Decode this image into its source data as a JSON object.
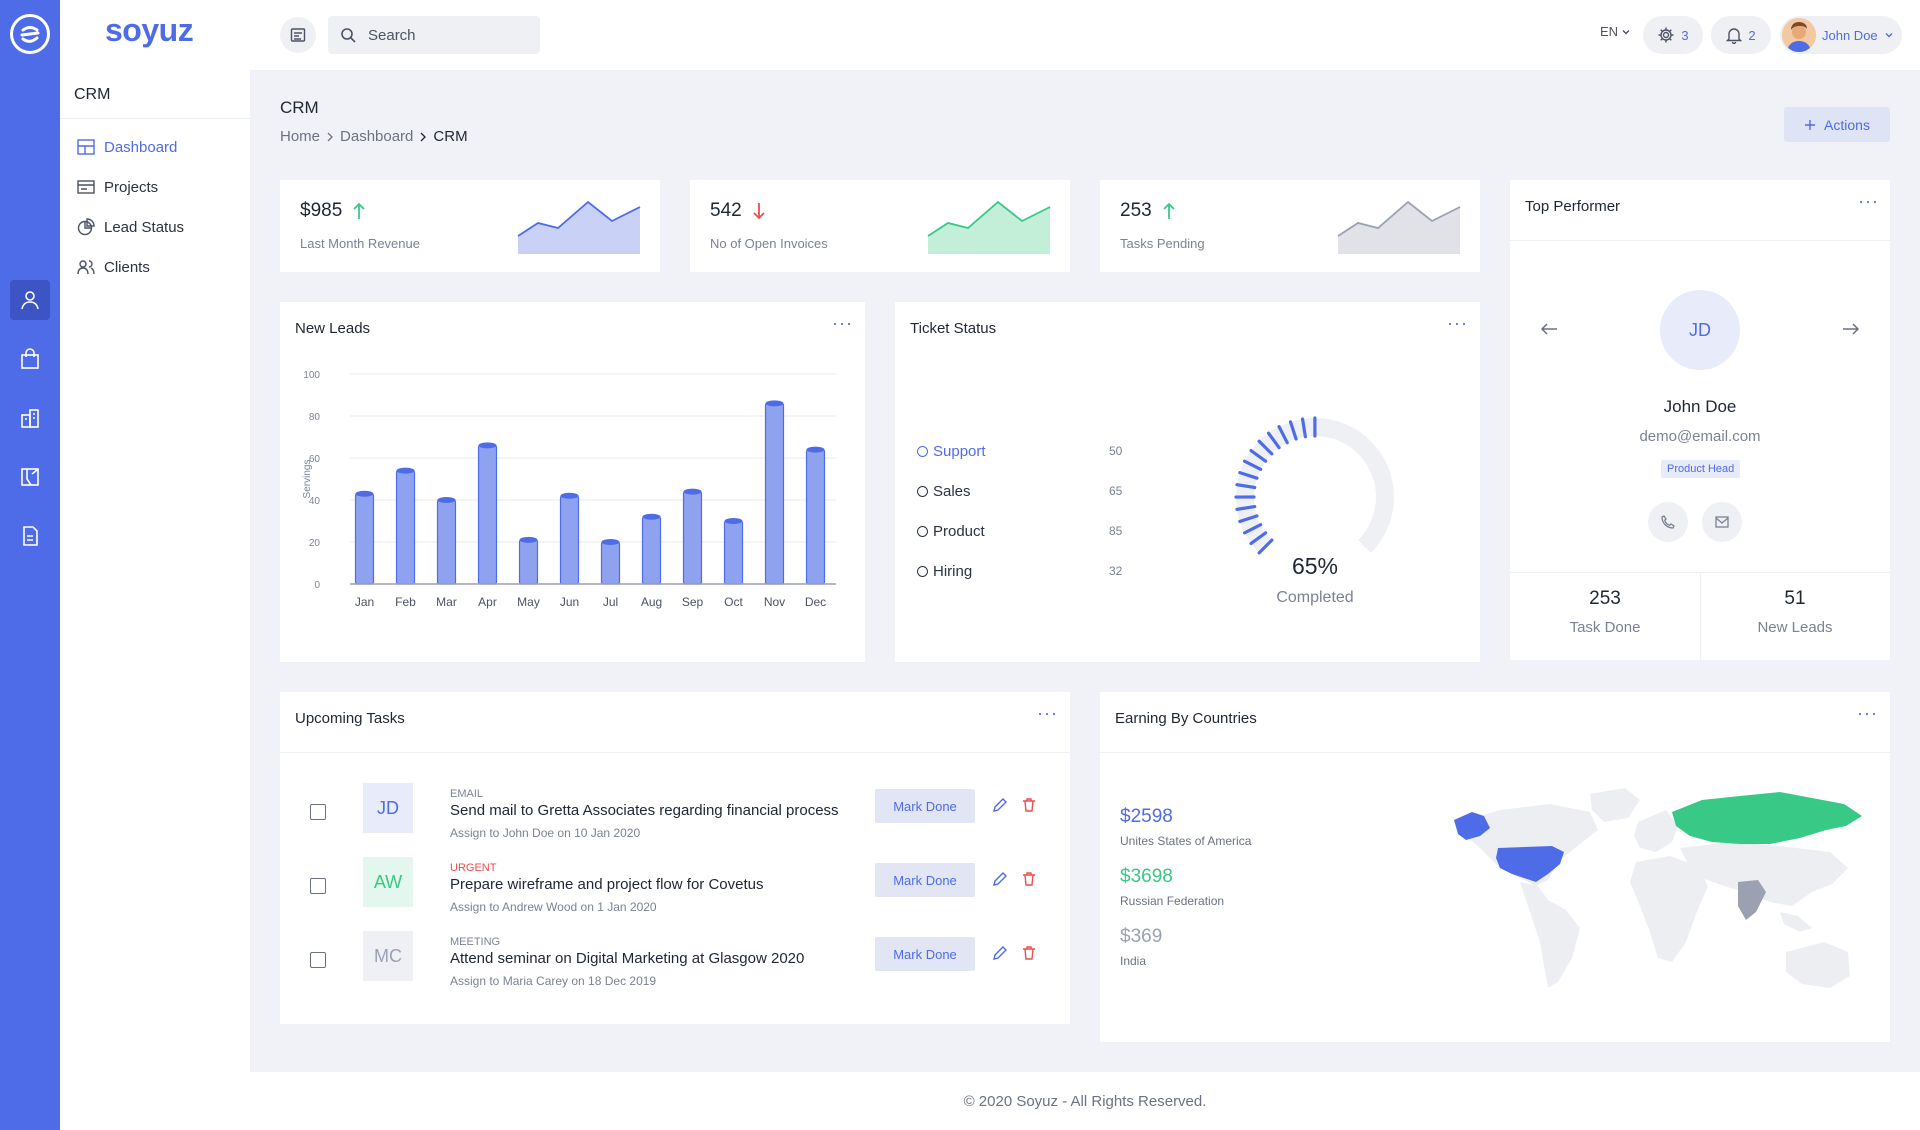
{
  "brand": "soyuz",
  "rail": {
    "icons": [
      "logo-icon",
      "user-icon",
      "bag-icon",
      "building-icon",
      "design-icon",
      "document-icon"
    ]
  },
  "sidebar": {
    "section": "CRM",
    "items": [
      {
        "label": "Dashboard",
        "icon": "dashboard-icon",
        "active": true
      },
      {
        "label": "Projects",
        "icon": "projects-icon"
      },
      {
        "label": "Lead Status",
        "icon": "pie-icon"
      },
      {
        "label": "Clients",
        "icon": "clients-icon"
      }
    ]
  },
  "topbar": {
    "search_placeholder": "Search",
    "language": "EN",
    "settings_count": "3",
    "notifications_count": "2",
    "user_name": "John Doe"
  },
  "page": {
    "title": "CRM",
    "breadcrumb": [
      "Home",
      "Dashboard",
      "CRM"
    ],
    "actions_label": "Actions"
  },
  "stats": [
    {
      "value": "$985",
      "trend": "up",
      "label": "Last Month Revenue",
      "color": "#4f6ce8",
      "fill": "#c9d1f7"
    },
    {
      "value": "542",
      "trend": "down",
      "label": "No of Open Invoices",
      "color": "#37c985",
      "fill": "#c3efd8"
    },
    {
      "value": "253",
      "trend": "up",
      "label": "Tasks Pending",
      "color": "#9aa1b0",
      "fill": "#e0e2e8"
    }
  ],
  "new_leads": {
    "title": "New Leads",
    "chart_data": {
      "type": "bar",
      "categories": [
        "Jan",
        "Feb",
        "Mar",
        "Apr",
        "May",
        "Jun",
        "Jul",
        "Aug",
        "Sep",
        "Oct",
        "Nov",
        "Dec"
      ],
      "values": [
        43,
        54,
        40,
        66,
        21,
        42,
        20,
        32,
        44,
        30,
        86,
        64
      ],
      "ylabel": "Servings",
      "ylim": [
        0,
        100
      ],
      "yticks": [
        0,
        20,
        40,
        60,
        80,
        100
      ],
      "grid": true,
      "color": "#4f6ce8"
    }
  },
  "ticket_status": {
    "title": "Ticket Status",
    "items": [
      {
        "label": "Support",
        "value": "50",
        "active": true
      },
      {
        "label": "Sales",
        "value": "65"
      },
      {
        "label": "Product",
        "value": "85"
      },
      {
        "label": "Hiring",
        "value": "32"
      }
    ],
    "percent_label": "65%",
    "percent": 65,
    "completed_label": "Completed"
  },
  "top_performer": {
    "title": "Top Performer",
    "initials": "JD",
    "name": "John Doe",
    "email": "demo@email.com",
    "role": "Product Head",
    "task_done_value": "253",
    "task_done_label": "Task Done",
    "new_leads_value": "51",
    "new_leads_label": "New Leads"
  },
  "tasks": {
    "title": "Upcoming Tasks",
    "mark_done_label": "Mark Done",
    "items": [
      {
        "initials": "JD",
        "category": "Email",
        "title": "Send mail to Gretta Associates regarding financial process",
        "assign": "Assign to John Doe on 10 Jan 2020",
        "color": "#4f6ce8",
        "bg": "#e8ebf9",
        "cat_color": "#7b8294"
      },
      {
        "initials": "AW",
        "category": "Urgent",
        "title": "Prepare wireframe and project flow for Covetus",
        "assign": "Assign to Andrew Wood on 1 Jan 2020",
        "color": "#37c985",
        "bg": "#e4f7ee",
        "cat_color": "#ea4e4e"
      },
      {
        "initials": "MC",
        "category": "Meeting",
        "title": "Attend seminar on Digital Marketing at Glasgow 2020",
        "assign": "Assign to Maria Carey on 18 Dec 2019",
        "color": "#9aa1b0",
        "bg": "#eef0f4",
        "cat_color": "#7b8294"
      }
    ]
  },
  "earnings": {
    "title": "Earning By Countries",
    "items": [
      {
        "value": "$2598",
        "country": "Unites States of America",
        "color": "#4f6ce8"
      },
      {
        "value": "$3698",
        "country": "Russian Federation",
        "color": "#37c985"
      },
      {
        "value": "$369",
        "country": "India",
        "color": "#9aa1b0"
      }
    ]
  },
  "footer": "© 2020 Soyuz - All Rights Reserved."
}
